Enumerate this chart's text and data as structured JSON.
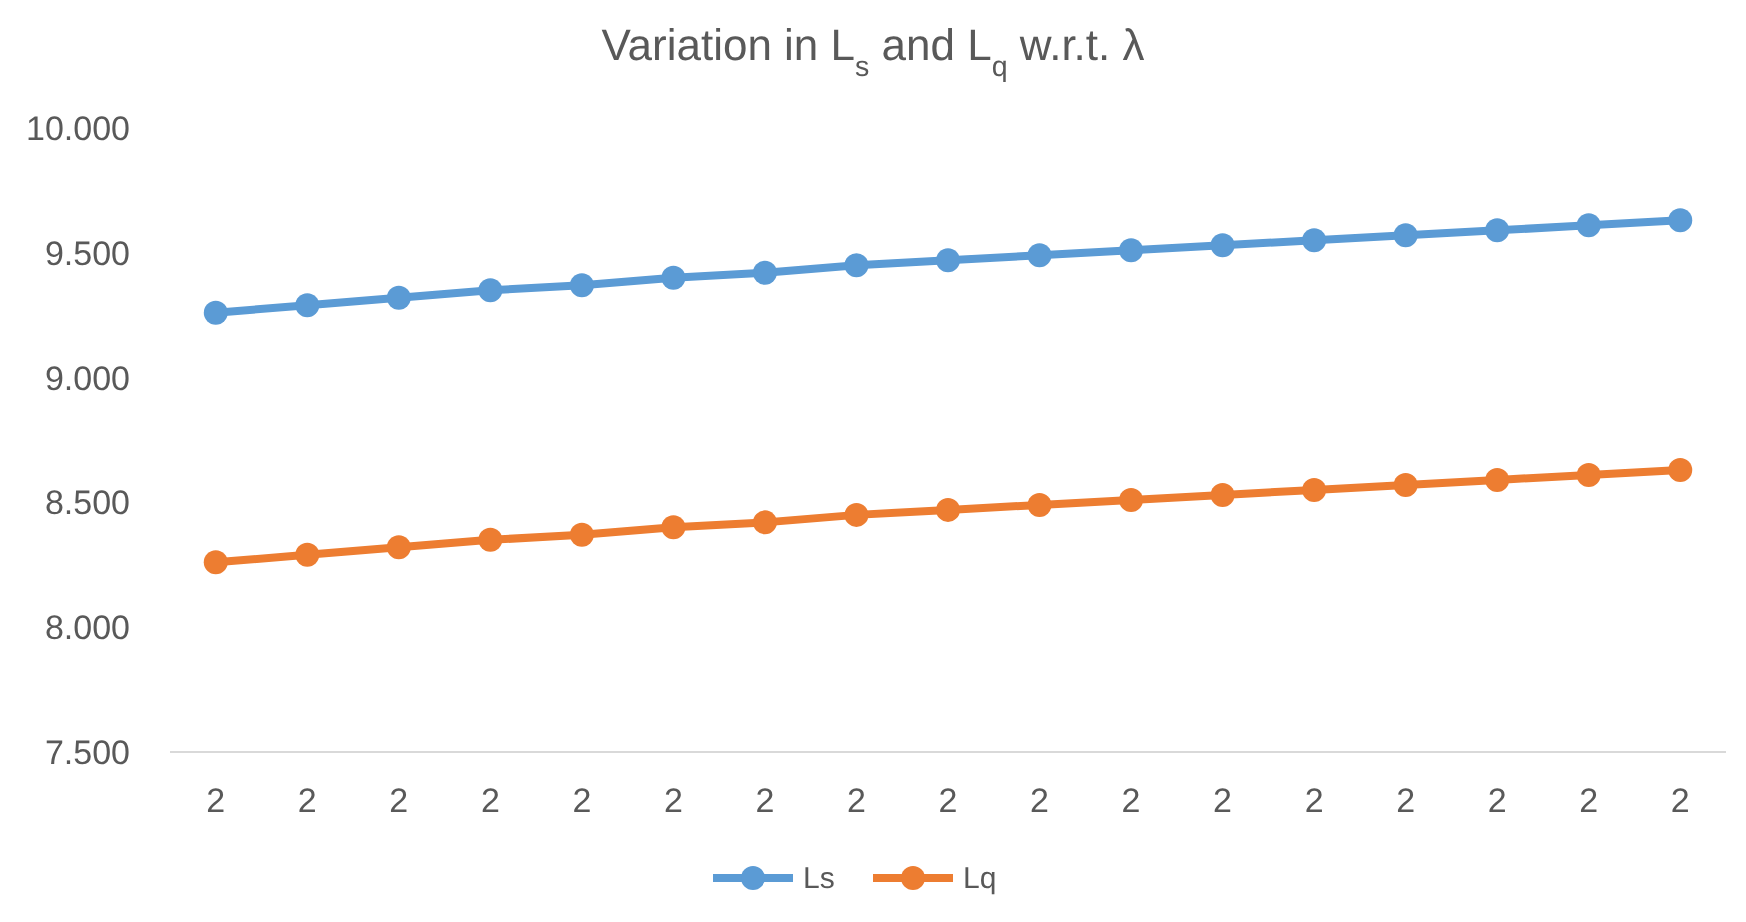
{
  "chart_data": {
    "type": "line",
    "title": "Variation in L$_{s}$ and L$_{q}$ w.r.t. λ",
    "categories": [
      "2",
      "2",
      "2",
      "2",
      "2",
      "2",
      "2",
      "2",
      "2",
      "2",
      "2",
      "2",
      "2",
      "2",
      "2",
      "2",
      "2"
    ],
    "series": [
      {
        "name": "Ls",
        "color": "#5b9bd5",
        "values": [
          9.26,
          9.29,
          9.32,
          9.35,
          9.37,
          9.4,
          9.42,
          9.45,
          9.47,
          9.49,
          9.51,
          9.53,
          9.55,
          9.57,
          9.59,
          9.61,
          9.63
        ]
      },
      {
        "name": "Lq",
        "color": "#ed7d31",
        "values": [
          8.26,
          8.29,
          8.32,
          8.35,
          8.37,
          8.4,
          8.42,
          8.45,
          8.47,
          8.49,
          8.51,
          8.53,
          8.55,
          8.57,
          8.59,
          8.61,
          8.63
        ]
      }
    ],
    "ylim": [
      7.5,
      10
    ],
    "yticks": [
      {
        "value": 7.5,
        "label": "7.500"
      },
      {
        "value": 8,
        "label": "8.000"
      },
      {
        "value": 8.5,
        "label": "8.500"
      },
      {
        "value": 9,
        "label": "9.000"
      },
      {
        "value": 9.5,
        "label": "9.500"
      },
      {
        "value": 10,
        "label": "10.000"
      }
    ],
    "grid": false,
    "legend": "bottom",
    "marker": "circle",
    "line_style": "solid"
  }
}
